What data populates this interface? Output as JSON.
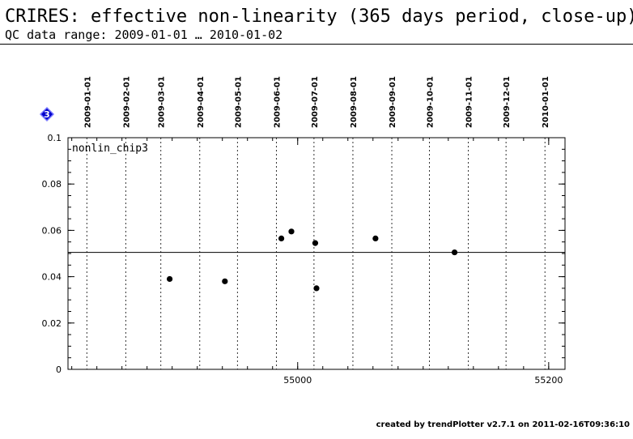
{
  "header": {
    "title": "CRIRES: effective non-linearity (365 days period, close-up)",
    "subtitle": "QC data range: 2009-01-01 … 2010-01-02"
  },
  "footer": {
    "text": "created by trendPlotter v2.7.1 on 2011-02-16T09:36:10"
  },
  "marker": {
    "label": "3",
    "color": "#0000cc"
  },
  "chart_data": {
    "type": "scatter",
    "panel_label": "nonlin_chip3",
    "x_axis": {
      "range": [
        54817,
        55213
      ],
      "major_ticks": [
        55000,
        55200
      ],
      "tick_labels": [
        "55000",
        "55200"
      ]
    },
    "y_axis": {
      "range": [
        0,
        0.1
      ],
      "major_ticks": [
        0,
        0.02,
        0.04,
        0.06,
        0.08,
        0.1
      ],
      "tick_labels": [
        "0",
        "0.02",
        "0.04",
        "0.06",
        "0.08",
        "0.1"
      ]
    },
    "date_ticks": [
      {
        "label": "2009-01-01",
        "x": 54832
      },
      {
        "label": "2009-02-01",
        "x": 54863
      },
      {
        "label": "2009-03-01",
        "x": 54891
      },
      {
        "label": "2009-04-01",
        "x": 54922
      },
      {
        "label": "2009-05-01",
        "x": 54952
      },
      {
        "label": "2009-06-01",
        "x": 54983
      },
      {
        "label": "2009-07-01",
        "x": 55013
      },
      {
        "label": "2009-08-01",
        "x": 55044
      },
      {
        "label": "2009-09-01",
        "x": 55075
      },
      {
        "label": "2009-10-01",
        "x": 55105
      },
      {
        "label": "2009-11-01",
        "x": 55136
      },
      {
        "label": "2009-12-01",
        "x": 55166
      },
      {
        "label": "2010-01-01",
        "x": 55197
      }
    ],
    "reference_line": 0.0505,
    "points": [
      {
        "x": 54898,
        "y": 0.039
      },
      {
        "x": 54942,
        "y": 0.038
      },
      {
        "x": 54987,
        "y": 0.0565
      },
      {
        "x": 54995,
        "y": 0.0595
      },
      {
        "x": 55014,
        "y": 0.0545
      },
      {
        "x": 55015,
        "y": 0.035
      },
      {
        "x": 55062,
        "y": 0.0565
      },
      {
        "x": 55125,
        "y": 0.0505
      }
    ]
  }
}
